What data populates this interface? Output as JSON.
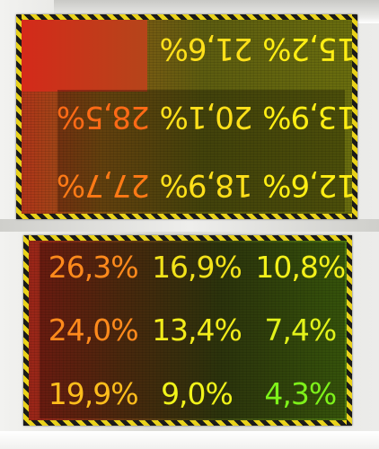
{
  "top_panel": {
    "rotated_180": true,
    "cells": [
      {
        "value": "12,6%",
        "color": "#ffee14"
      },
      {
        "value": "18,9%",
        "color": "#ffe01a"
      },
      {
        "value": "27,7%",
        "color": "#ff7a16"
      },
      {
        "value": "13,9%",
        "color": "#ffee14"
      },
      {
        "value": "20,1%",
        "color": "#ffe01a"
      },
      {
        "value": "28,5%",
        "color": "#ff6a16"
      },
      {
        "value": "15,2%",
        "color": "#ffee14"
      },
      {
        "value": "21,6%",
        "color": "#ffe01a"
      },
      {
        "value": "",
        "color": "#ff6a16"
      }
    ]
  },
  "bottom_panel": {
    "cells": [
      {
        "value": "26,3%",
        "color": "#ff8a1c"
      },
      {
        "value": "16,9%",
        "color": "#f2e21a"
      },
      {
        "value": "10,8%",
        "color": "#f3f01a"
      },
      {
        "value": "24,0%",
        "color": "#ff8a1c"
      },
      {
        "value": "13,4%",
        "color": "#f2ec1a"
      },
      {
        "value": "7,4%",
        "color": "#e2f21a"
      },
      {
        "value": "19,9%",
        "color": "#ffbe1c"
      },
      {
        "value": "9,0%",
        "color": "#f1f41a"
      },
      {
        "value": "4,3%",
        "color": "#7ef21a"
      }
    ]
  }
}
